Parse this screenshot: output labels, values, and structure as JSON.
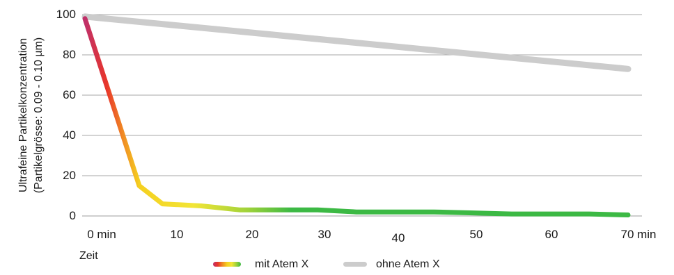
{
  "chart_data": {
    "type": "line",
    "ylabel_lines": [
      "Ultrafeine Partikelkonzentration",
      "(Partikelgrösse: 0.09 - 0.10 µm)"
    ],
    "xlabel": "Zeit",
    "x_ticks": [
      "0 min",
      "10",
      "20",
      "30",
      "40",
      "50",
      "60",
      "70 min"
    ],
    "y_ticks": [
      "0",
      "20",
      "40",
      "60",
      "80",
      "100"
    ],
    "xlim": [
      0,
      70
    ],
    "ylim": [
      0,
      100
    ],
    "grid": true,
    "legend_position": "bottom",
    "series": [
      {
        "name": "mit Atem X",
        "x": [
          0,
          7,
          10,
          15,
          20,
          30,
          35,
          40,
          45,
          50,
          55,
          60,
          65,
          70
        ],
        "y": [
          98,
          15,
          6,
          5,
          3,
          3,
          2,
          2,
          2,
          1.5,
          1,
          1,
          1,
          0.5
        ],
        "colors": [
          "#c0306a",
          "#e8362a",
          "#f08a24",
          "#f5d020",
          "#f2e536",
          "#9fd23a",
          "#3cb944"
        ]
      },
      {
        "name": "ohne Atem X",
        "x": [
          0,
          70
        ],
        "y": [
          99,
          73
        ],
        "colors": [
          "#cccccc"
        ]
      }
    ]
  }
}
